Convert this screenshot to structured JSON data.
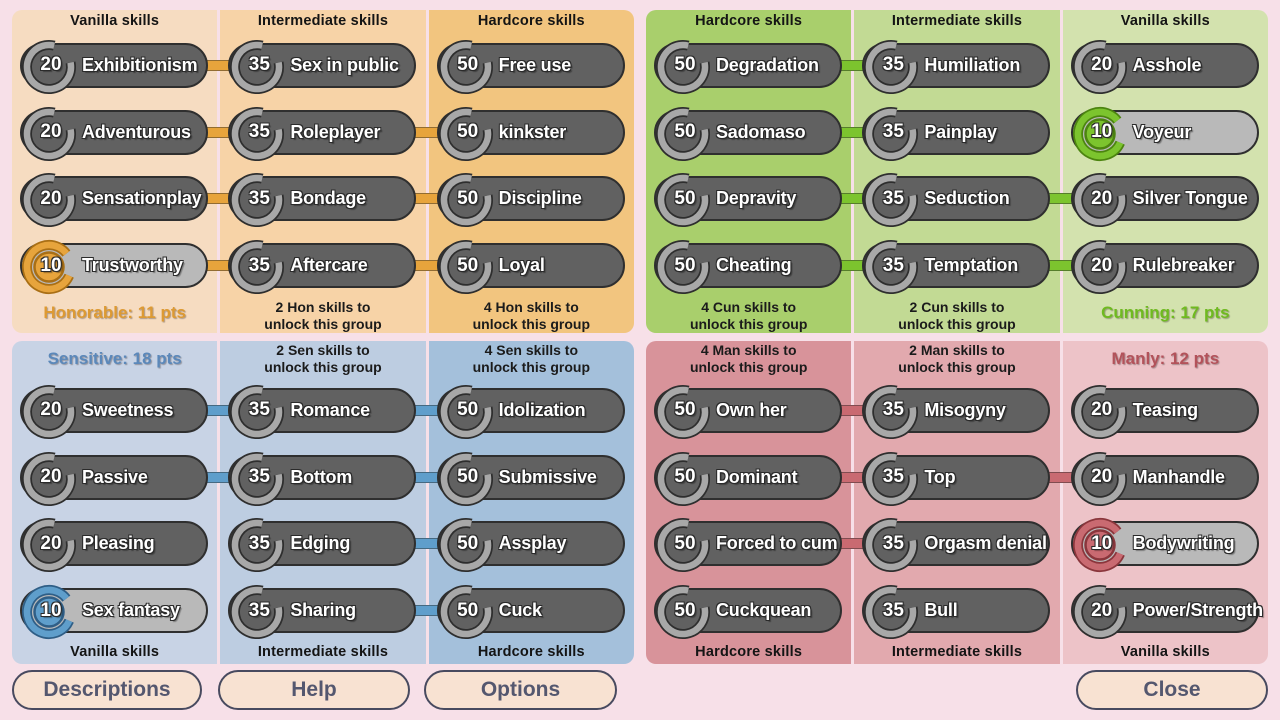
{
  "page": {
    "background": "#f7e0e8"
  },
  "quadrants": [
    {
      "id": "honorable",
      "position": "top-left",
      "header_side": "top",
      "accent": "#e7a43c",
      "accent_dark": "#a96f15",
      "pts_color": "#dd9a33",
      "col_colors": [
        "#f6dcc1",
        "#f7d3a7",
        "#f2c57f"
      ],
      "columns": [
        {
          "header": "Vanilla skills",
          "note": "Honorable: 11 pts",
          "note_type": "pts",
          "skills": [
            {
              "cost": "20",
              "label": "Exhibitionism",
              "unlocked": false
            },
            {
              "cost": "20",
              "label": "Adventurous",
              "unlocked": false
            },
            {
              "cost": "20",
              "label": "Sensationplay",
              "unlocked": false
            },
            {
              "cost": "10",
              "label": "Trustworthy",
              "unlocked": true
            }
          ]
        },
        {
          "header": "Intermediate skills",
          "note": "2 Hon skills to\nunlock this group",
          "note_type": "unlock",
          "skills": [
            {
              "cost": "35",
              "label": "Sex in public",
              "unlocked": false
            },
            {
              "cost": "35",
              "label": "Roleplayer",
              "unlocked": false
            },
            {
              "cost": "35",
              "label": "Bondage",
              "unlocked": false
            },
            {
              "cost": "35",
              "label": "Aftercare",
              "unlocked": false
            }
          ]
        },
        {
          "header": "Hardcore skills",
          "note": "4 Hon skills to\nunlock this group",
          "note_type": "unlock",
          "skills": [
            {
              "cost": "50",
              "label": "Free use",
              "unlocked": false
            },
            {
              "cost": "50",
              "label": "kinkster",
              "unlocked": false
            },
            {
              "cost": "50",
              "label": "Discipline",
              "unlocked": false
            },
            {
              "cost": "50",
              "label": "Loyal",
              "unlocked": false
            }
          ]
        }
      ],
      "connectors": [
        [
          1,
          0
        ],
        [
          1,
          1
        ],
        [
          1,
          1
        ],
        [
          1,
          1
        ]
      ]
    },
    {
      "id": "cunning",
      "position": "top-right",
      "header_side": "top",
      "accent": "#7cc42e",
      "accent_dark": "#4c8410",
      "pts_color": "#6fba20",
      "col_colors": [
        "#a9cf6c",
        "#c2da94",
        "#d3e2ae"
      ],
      "columns": [
        {
          "header": "Hardcore skills",
          "note": "4 Cun skills to\nunlock this group",
          "note_type": "unlock",
          "skills": [
            {
              "cost": "50",
              "label": "Degradation",
              "unlocked": false
            },
            {
              "cost": "50",
              "label": "Sadomaso",
              "unlocked": false
            },
            {
              "cost": "50",
              "label": "Depravity",
              "unlocked": false
            },
            {
              "cost": "50",
              "label": "Cheating",
              "unlocked": false
            }
          ]
        },
        {
          "header": "Intermediate skills",
          "note": "2 Cun skills to\nunlock this group",
          "note_type": "unlock",
          "skills": [
            {
              "cost": "35",
              "label": "Humiliation",
              "unlocked": false
            },
            {
              "cost": "35",
              "label": "Painplay",
              "unlocked": false
            },
            {
              "cost": "35",
              "label": "Seduction",
              "unlocked": false
            },
            {
              "cost": "35",
              "label": "Temptation",
              "unlocked": false
            }
          ]
        },
        {
          "header": "Vanilla skills",
          "note": "Cunning: 17 pts",
          "note_type": "pts",
          "skills": [
            {
              "cost": "20",
              "label": "Asshole",
              "unlocked": false
            },
            {
              "cost": "10",
              "label": "Voyeur",
              "unlocked": true
            },
            {
              "cost": "20",
              "label": "Silver Tongue",
              "unlocked": false
            },
            {
              "cost": "20",
              "label": "Rulebreaker",
              "unlocked": false
            }
          ]
        }
      ],
      "connectors": [
        [
          1,
          0
        ],
        [
          1,
          0
        ],
        [
          1,
          1
        ],
        [
          1,
          1
        ]
      ]
    },
    {
      "id": "sensitive",
      "position": "bottom-left",
      "header_side": "bottom",
      "accent": "#5f9ecb",
      "accent_dark": "#2f5e86",
      "pts_color": "#5b88ba",
      "col_colors": [
        "#c8d3e5",
        "#bdcde1",
        "#a4c0db"
      ],
      "columns": [
        {
          "header": "Vanilla skills",
          "note": "Sensitive: 18 pts",
          "note_type": "pts",
          "skills": [
            {
              "cost": "20",
              "label": "Sweetness",
              "unlocked": false
            },
            {
              "cost": "20",
              "label": "Passive",
              "unlocked": false
            },
            {
              "cost": "20",
              "label": "Pleasing",
              "unlocked": false
            },
            {
              "cost": "10",
              "label": "Sex fantasy",
              "unlocked": true
            }
          ]
        },
        {
          "header": "Intermediate skills",
          "note": "2 Sen skills to\nunlock this group",
          "note_type": "unlock",
          "skills": [
            {
              "cost": "35",
              "label": "Romance",
              "unlocked": false
            },
            {
              "cost": "35",
              "label": "Bottom",
              "unlocked": false
            },
            {
              "cost": "35",
              "label": "Edging",
              "unlocked": false
            },
            {
              "cost": "35",
              "label": "Sharing",
              "unlocked": false
            }
          ]
        },
        {
          "header": "Hardcore skills",
          "note": "4 Sen skills to\nunlock this group",
          "note_type": "unlock",
          "skills": [
            {
              "cost": "50",
              "label": "Idolization",
              "unlocked": false
            },
            {
              "cost": "50",
              "label": "Submissive",
              "unlocked": false
            },
            {
              "cost": "50",
              "label": "Assplay",
              "unlocked": false
            },
            {
              "cost": "50",
              "label": "Cuck",
              "unlocked": false
            }
          ]
        }
      ],
      "connectors": [
        [
          1,
          1
        ],
        [
          1,
          1
        ],
        [
          0,
          1
        ],
        [
          0,
          1
        ]
      ]
    },
    {
      "id": "manly",
      "position": "bottom-right",
      "header_side": "bottom",
      "accent": "#c96a71",
      "accent_dark": "#8a363c",
      "pts_color": "#b3525a",
      "col_colors": [
        "#d8939a",
        "#e2a9ae",
        "#edc3c8"
      ],
      "columns": [
        {
          "header": "Hardcore skills",
          "note": "4 Man skills to\nunlock this group",
          "note_type": "unlock",
          "skills": [
            {
              "cost": "50",
              "label": "Own her",
              "unlocked": false
            },
            {
              "cost": "50",
              "label": "Dominant",
              "unlocked": false
            },
            {
              "cost": "50",
              "label": "Forced to cum",
              "unlocked": false
            },
            {
              "cost": "50",
              "label": "Cuckquean",
              "unlocked": false
            }
          ]
        },
        {
          "header": "Intermediate skills",
          "note": "2 Man skills to\nunlock this group",
          "note_type": "unlock",
          "skills": [
            {
              "cost": "35",
              "label": "Misogyny",
              "unlocked": false
            },
            {
              "cost": "35",
              "label": "Top",
              "unlocked": false
            },
            {
              "cost": "35",
              "label": "Orgasm denial",
              "unlocked": false
            },
            {
              "cost": "35",
              "label": "Bull",
              "unlocked": false
            }
          ]
        },
        {
          "header": "Vanilla skills",
          "note": "Manly: 12 pts",
          "note_type": "pts",
          "skills": [
            {
              "cost": "20",
              "label": "Teasing",
              "unlocked": false
            },
            {
              "cost": "20",
              "label": "Manhandle",
              "unlocked": false
            },
            {
              "cost": "10",
              "label": "Bodywriting",
              "unlocked": true
            },
            {
              "cost": "20",
              "label": "Power/Strength",
              "unlocked": false
            }
          ]
        }
      ],
      "connectors": [
        [
          1,
          0
        ],
        [
          1,
          1
        ],
        [
          1,
          0
        ],
        [
          0,
          0
        ]
      ]
    }
  ],
  "buttons": {
    "descriptions": "Descriptions",
    "help": "Help",
    "options": "Options",
    "close": "Close"
  },
  "colors": {
    "locked_pill": "#616161",
    "unlocked_pill": "#b9b9b9",
    "locked_ring": "#a8a8a8",
    "button_bg": "#f8e2d2",
    "button_text": "#54576f"
  }
}
